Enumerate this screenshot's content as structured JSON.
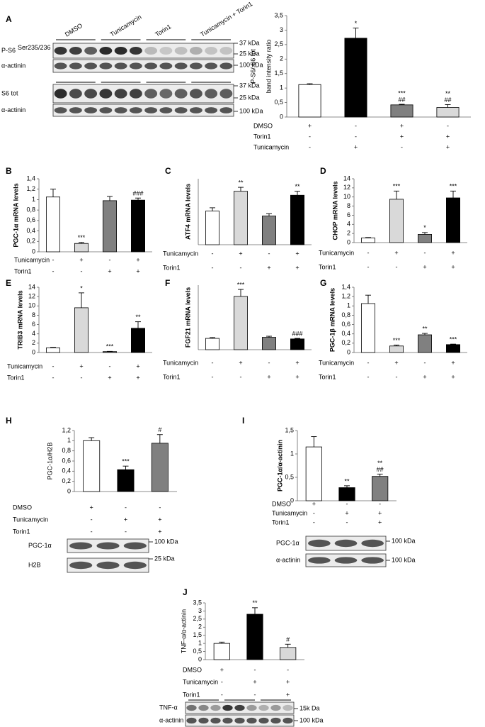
{
  "chart_data": [
    {
      "type": "bar",
      "panel": "A",
      "ylabel": [
        "P-S6/ S6 tot",
        "band intensity ratio"
      ],
      "values": [
        1.12,
        2.72,
        0.42,
        0.33
      ],
      "errors": [
        0.03,
        0.35,
        0.02,
        0.1
      ],
      "colors": [
        "#ffffff",
        "#000000",
        "#808080",
        "#d9d9d9"
      ],
      "ylim": [
        0,
        3.5
      ],
      "yticks": [
        0,
        {
          "value": 0.5,
          "label": "0,5"
        },
        1,
        {
          "value": 1.5,
          "label": "1,5"
        },
        2,
        {
          "value": 2.5,
          "label": "2,5"
        },
        3,
        {
          "value": 3.5,
          "label": "3,5"
        }
      ],
      "annotations": [
        null,
        [
          "*"
        ],
        [
          "***",
          "##"
        ],
        [
          "**",
          "##"
        ]
      ],
      "conditions": [
        {
          "label": "DMSO",
          "marks": [
            "+",
            "-",
            "+",
            "-"
          ]
        },
        {
          "label": "Torin1",
          "marks": [
            "-",
            "-",
            "+",
            "+"
          ]
        },
        {
          "label": "Tunicamycin",
          "marks": [
            "-",
            "+",
            "-",
            "+"
          ]
        }
      ],
      "blot": {
        "lanes": [
          "DMSO",
          "Tunicamycin",
          "Torin1",
          "Tunicamycin + Torin1"
        ],
        "rows": [
          {
            "label": "P-S6",
            "sup": "Ser235/236",
            "kda": [
              "37 kDa",
              "25 kDa"
            ]
          },
          {
            "label": "α-actinin",
            "kda": [
              "100 kDa"
            ]
          },
          {
            "label": "S6 tot",
            "kda": [
              "37 kDa",
              "25 kDa"
            ]
          },
          {
            "label": "α-actinin",
            "kda": [
              "100 kDa"
            ]
          }
        ]
      }
    },
    {
      "type": "bar",
      "panel": "B",
      "ylabel": [
        "PGC-1α  mRNA levels"
      ],
      "values": [
        1.05,
        0.16,
        0.98,
        0.99
      ],
      "errors": [
        0.15,
        0.02,
        0.08,
        0.04
      ],
      "colors": [
        "#ffffff",
        "#d9d9d9",
        "#808080",
        "#000000"
      ],
      "ylim": [
        0,
        1.4
      ],
      "yticks": [
        0,
        {
          "value": 0.2,
          "label": "0,2"
        },
        {
          "value": 0.4,
          "label": "0,4"
        },
        {
          "value": 0.6,
          "label": "0,6"
        },
        {
          "value": 0.8,
          "label": "0,8"
        },
        1,
        {
          "value": 1.2,
          "label": "1,2"
        },
        {
          "value": 1.4,
          "label": "1,4"
        }
      ],
      "annotations": [
        null,
        [
          "***"
        ],
        null,
        [
          "###"
        ]
      ],
      "conditions": [
        {
          "label": "Tunicamycin",
          "marks": [
            "-",
            "+",
            "-",
            "+"
          ]
        },
        {
          "label": "Torin1",
          "marks": [
            "-",
            "-",
            "+",
            "+"
          ]
        }
      ]
    },
    {
      "type": "bar",
      "panel": "C",
      "ylabel": [
        "ATF4 mRNA levels"
      ],
      "values": [
        1.02,
        1.62,
        0.87,
        1.5
      ],
      "errors": [
        0.1,
        0.12,
        0.07,
        0.12
      ],
      "colors": [
        "#ffffff",
        "#d9d9d9",
        "#808080",
        "#000000"
      ],
      "ylim": [
        0,
        2
      ],
      "annotations": [
        null,
        [
          "**"
        ],
        null,
        [
          "**"
        ]
      ],
      "conditions": [
        {
          "label": "Tunicamycin",
          "marks": [
            "-",
            "+",
            "-",
            "+"
          ]
        },
        {
          "label": "Torin1",
          "marks": [
            "-",
            "-",
            "+",
            "+"
          ]
        }
      ]
    },
    {
      "type": "bar",
      "panel": "D",
      "ylabel": [
        "CHOP  mRNA levels"
      ],
      "values": [
        1,
        9.5,
        1.8,
        9.8
      ],
      "errors": [
        0.1,
        1.8,
        0.4,
        1.5
      ],
      "colors": [
        "#ffffff",
        "#d9d9d9",
        "#808080",
        "#000000"
      ],
      "ylim": [
        0,
        14
      ],
      "yticks": [
        0,
        2,
        4,
        6,
        8,
        10,
        12,
        14
      ],
      "annotations": [
        null,
        [
          "***"
        ],
        [
          "*"
        ],
        [
          "***"
        ]
      ],
      "conditions": [
        {
          "label": "Tunicamycin",
          "marks": [
            "-",
            "+",
            "-",
            "+"
          ]
        },
        {
          "label": "Torin1",
          "marks": [
            "-",
            "-",
            "+",
            "+"
          ]
        }
      ]
    },
    {
      "type": "bar",
      "panel": "E",
      "ylabel": [
        "TRIB3 mRNA levels"
      ],
      "values": [
        1,
        9.6,
        0.2,
        5.2
      ],
      "errors": [
        0.1,
        3.2,
        0.05,
        1.4
      ],
      "colors": [
        "#ffffff",
        "#d9d9d9",
        "#808080",
        "#000000"
      ],
      "ylim": [
        0,
        14
      ],
      "yticks": [
        0,
        2,
        4,
        6,
        8,
        10,
        12,
        14
      ],
      "annotations": [
        null,
        [
          "*"
        ],
        [
          "***"
        ],
        [
          "**"
        ]
      ],
      "conditions": [
        {
          "label": "Tunicamycin",
          "marks": [
            "-",
            "+",
            "-",
            "+"
          ]
        },
        {
          "label": "Torin1",
          "marks": [
            "-",
            "-",
            "+",
            "+"
          ]
        }
      ]
    },
    {
      "type": "bar",
      "panel": "F",
      "ylabel": [
        "FGF21  mRNA levels"
      ],
      "values": [
        1.05,
        4.95,
        1.15,
        1.0
      ],
      "errors": [
        0.08,
        0.65,
        0.1,
        0.05
      ],
      "colors": [
        "#ffffff",
        "#d9d9d9",
        "#808080",
        "#000000"
      ],
      "ylim": [
        0,
        6
      ],
      "annotations": [
        null,
        [
          "***"
        ],
        null,
        [
          "###"
        ]
      ],
      "conditions": [
        {
          "label": "Tunicamycin",
          "marks": [
            "-",
            "+",
            "-",
            "+"
          ]
        },
        {
          "label": "Torin1",
          "marks": [
            "-",
            "-",
            "+",
            "+"
          ]
        }
      ]
    },
    {
      "type": "bar",
      "panel": "G",
      "ylabel": [
        "PGC-1β  mRNA levels"
      ],
      "values": [
        1.05,
        0.14,
        0.38,
        0.17
      ],
      "errors": [
        0.18,
        0.02,
        0.03,
        0.01
      ],
      "colors": [
        "#ffffff",
        "#d9d9d9",
        "#808080",
        "#000000"
      ],
      "ylim": [
        0,
        1.4
      ],
      "yticks": [
        0,
        {
          "value": 0.2,
          "label": "0,2"
        },
        {
          "value": 0.4,
          "label": "0,4"
        },
        {
          "value": 0.6,
          "label": "0,6"
        },
        {
          "value": 0.8,
          "label": "0,8"
        },
        1,
        {
          "value": 1.2,
          "label": "1,2"
        },
        {
          "value": 1.4,
          "label": "1,4"
        }
      ],
      "annotations": [
        null,
        [
          "***"
        ],
        [
          "**"
        ],
        [
          "***"
        ]
      ],
      "conditions": [
        {
          "label": "Tunicamycin",
          "marks": [
            "-",
            "+",
            "-",
            "+"
          ]
        },
        {
          "label": "Torin1",
          "marks": [
            "-",
            "-",
            "+",
            "+"
          ]
        }
      ]
    },
    {
      "type": "bar",
      "panel": "H",
      "ylabel": [
        "PGC-1α/H2B"
      ],
      "values": [
        1,
        0.43,
        0.95
      ],
      "errors": [
        0.06,
        0.07,
        0.17
      ],
      "colors": [
        "#ffffff",
        "#000000",
        "#808080"
      ],
      "ylim": [
        0,
        1.2
      ],
      "yticks": [
        0,
        {
          "value": 0.2,
          "label": "0,2"
        },
        {
          "value": 0.4,
          "label": "0,4"
        },
        {
          "value": 0.6,
          "label": "0,6"
        },
        {
          "value": 0.8,
          "label": "0,8"
        },
        1,
        {
          "value": 1.2,
          "label": "1,2"
        }
      ],
      "annotations": [
        null,
        [
          "***"
        ],
        [
          "#"
        ]
      ],
      "conditions": [
        {
          "label": "DMSO",
          "marks": [
            "+",
            "-",
            "-"
          ]
        },
        {
          "label": "Tunicamycin",
          "marks": [
            "-",
            "+",
            "+"
          ]
        },
        {
          "label": "Torin1",
          "marks": [
            "-",
            "-",
            "+"
          ]
        }
      ],
      "blot": {
        "rows": [
          {
            "label": "PGC-1α",
            "kda": [
              "100 kDa"
            ]
          },
          {
            "label": "H2B",
            "kda": [
              "25 kDa"
            ]
          }
        ]
      }
    },
    {
      "type": "bar",
      "panel": "I",
      "ylabel": [
        "PGC-1α/α-actinin"
      ],
      "values": [
        1.15,
        0.28,
        0.52
      ],
      "errors": [
        0.22,
        0.04,
        0.05
      ],
      "colors": [
        "#ffffff",
        "#000000",
        "#808080"
      ],
      "ylim": [
        0,
        1.5
      ],
      "yticks": [
        0,
        {
          "value": 0.5,
          "label": "0,5"
        },
        1,
        {
          "value": 1.5,
          "label": "1,5"
        }
      ],
      "annotations": [
        null,
        [
          "**"
        ],
        [
          "**",
          "##"
        ]
      ],
      "conditions": [
        {
          "label": "DMSO",
          "marks": [
            "+",
            "-",
            "-"
          ]
        },
        {
          "label": "Tunicamycin",
          "marks": [
            "-",
            "+",
            "+"
          ]
        },
        {
          "label": "Torin1",
          "marks": [
            "-",
            "-",
            "+"
          ]
        }
      ],
      "blot": {
        "rows": [
          {
            "label": "PGC-1α",
            "kda": [
              "100 kDa"
            ]
          },
          {
            "label": "α-actinin",
            "kda": [
              "100 kDa"
            ]
          }
        ]
      }
    },
    {
      "type": "bar",
      "panel": "J",
      "ylabel": [
        "TNF-α/α-actinin"
      ],
      "values": [
        1,
        2.8,
        0.75
      ],
      "errors": [
        0.08,
        0.4,
        0.2
      ],
      "colors": [
        "#ffffff",
        "#000000",
        "#d9d9d9"
      ],
      "ylim": [
        0,
        3.5
      ],
      "yticks": [
        0,
        {
          "value": 0.5,
          "label": "0,5"
        },
        1,
        {
          "value": 1.5,
          "label": "1,5"
        },
        2,
        {
          "value": 2.5,
          "label": "2,5"
        },
        3,
        {
          "value": 3.5,
          "label": "3,5"
        }
      ],
      "annotations": [
        null,
        [
          "**"
        ],
        [
          "#"
        ]
      ],
      "conditions": [
        {
          "label": "DMSO",
          "marks": [
            "+",
            "-",
            "-"
          ]
        },
        {
          "label": "Tunicamycin",
          "marks": [
            "-",
            "+",
            "+"
          ]
        },
        {
          "label": "Torin1",
          "marks": [
            "-",
            "-",
            "+"
          ]
        }
      ],
      "blot": {
        "rows": [
          {
            "label": "TNF-α",
            "kda": [
              "15k Da"
            ]
          },
          {
            "label": "α-actinin",
            "kda": [
              "100 kDa"
            ]
          }
        ]
      }
    }
  ]
}
